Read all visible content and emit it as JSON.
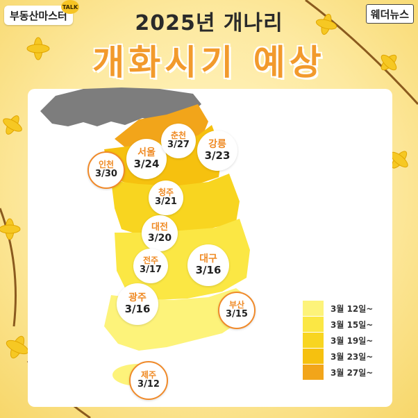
{
  "header": {
    "channel_badge": "부동산마스터",
    "talk_tag": "TALK",
    "source_badge": "웨더뉴스",
    "title_line1": "2025년 개나리",
    "title_line2": "개화시기 예상"
  },
  "cities": [
    {
      "id": "incheon",
      "name": "인천",
      "date": "3/30"
    },
    {
      "id": "seoul",
      "name": "서울",
      "date": "3/24"
    },
    {
      "id": "chuncheon",
      "name": "춘천",
      "date": "3/27"
    },
    {
      "id": "gangneung",
      "name": "강릉",
      "date": "3/23"
    },
    {
      "id": "cheongju",
      "name": "청주",
      "date": "3/21"
    },
    {
      "id": "daejeon",
      "name": "대전",
      "date": "3/20"
    },
    {
      "id": "jeonju",
      "name": "전주",
      "date": "3/17"
    },
    {
      "id": "daegu",
      "name": "대구",
      "date": "3/16"
    },
    {
      "id": "gwangju",
      "name": "광주",
      "date": "3/16"
    },
    {
      "id": "busan",
      "name": "부산",
      "date": "3/15"
    },
    {
      "id": "jeju",
      "name": "제주",
      "date": "3/12"
    }
  ],
  "legend": {
    "items": [
      {
        "label": "3월 12일~",
        "color": "#fdf37a"
      },
      {
        "label": "3월 15일~",
        "color": "#fbe744"
      },
      {
        "label": "3월 19일~",
        "color": "#f8d520"
      },
      {
        "label": "3월 23일~",
        "color": "#f6c10f"
      },
      {
        "label": "3월 27일~",
        "color": "#f2a51a"
      }
    ]
  },
  "colors": {
    "title_accent": "#f29a2c",
    "city_label": "#ef8a24",
    "north_korea": "#7d7d7d"
  }
}
